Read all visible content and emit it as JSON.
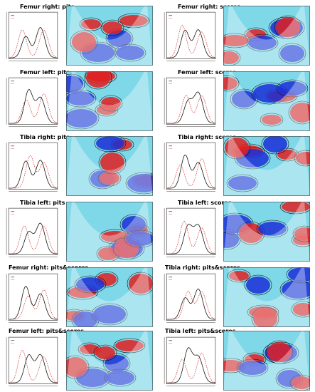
{
  "panels": [
    {
      "title": "Femur right: pits"
    },
    {
      "title": "Femur right: scores"
    },
    {
      "title": "Femur left: pits"
    },
    {
      "title": "Femur left: scores"
    },
    {
      "title": "Tibia right: pits"
    },
    {
      "title": "Tibia right: scores"
    },
    {
      "title": "Tibia left: pits"
    },
    {
      "title": "Tibia left: scores"
    },
    {
      "title": "Femur right: pits&scores"
    },
    {
      "title": "Tibia right: pits&scores"
    },
    {
      "title": "Femur left: pits&scores"
    },
    {
      "title": "Tibia left: pits&scores"
    }
  ],
  "colors": {
    "density_solid": "#111111",
    "density_dashed": "#d23030",
    "wavelet_low": "#1a2fd6",
    "wavelet_mid": "#7fd8e8",
    "wavelet_high": "#e02020"
  }
}
